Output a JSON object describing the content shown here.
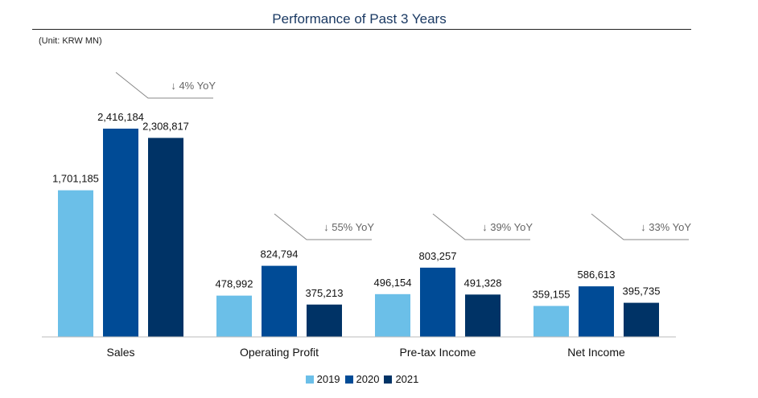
{
  "title": "Performance of Past 3 Years",
  "unit_note": "(Unit: KRW MN)",
  "chart_data": {
    "type": "bar",
    "categories": [
      "Sales",
      "Operating Profit",
      "Pre-tax Income",
      "Net Income"
    ],
    "series": [
      {
        "name": "2019",
        "color": "#6bbfe8",
        "values": [
          1701185,
          478992,
          496154,
          359155
        ]
      },
      {
        "name": "2020",
        "color": "#004b96",
        "values": [
          2416184,
          824794,
          803257,
          586613
        ]
      },
      {
        "name": "2021",
        "color": "#003366",
        "values": [
          2308817,
          375213,
          491328,
          395735
        ]
      }
    ],
    "value_labels": [
      [
        "1,701,185",
        "478,992",
        "496,154",
        "359,155"
      ],
      [
        "2,416,184",
        "824,794",
        "803,257",
        "586,613"
      ],
      [
        "2,308,817",
        "375,213",
        "491,328",
        "395,735"
      ]
    ],
    "annotations": [
      "↓ 4% YoY",
      "↓ 55% YoY",
      "↓ 39% YoY",
      "↓ 33% YoY"
    ],
    "ylim": [
      0,
      2600000
    ],
    "grid": false,
    "legend_position": "bottom-center"
  }
}
